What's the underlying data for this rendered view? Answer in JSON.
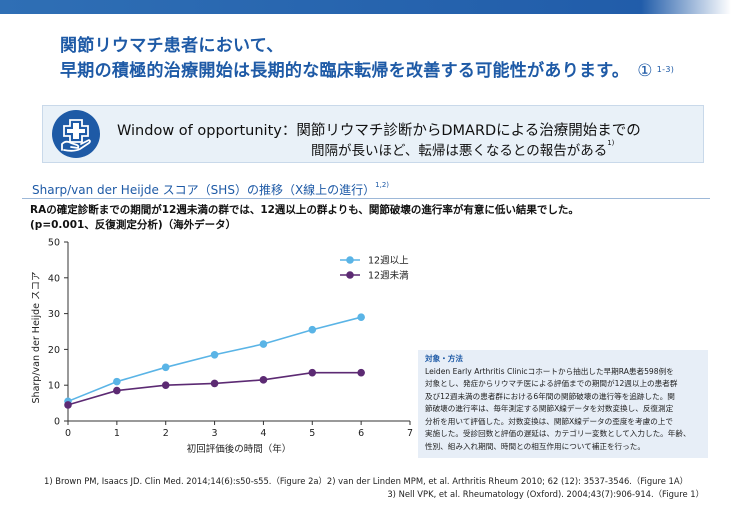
{
  "title": {
    "line1": "関節リウマチ患者において、",
    "line2": "早期の積極的治療開始は長期的な臨床転帰を改善する可能性があります。",
    "marker": "①",
    "ref": "1-3)"
  },
  "window": {
    "heading": "Window of opportunity",
    "colon": "：",
    "line1_text": "関節リウマチ診断からDMARDによる治療開始までの",
    "line2_text": "間隔が長いほど、転帰は悪くなるとの報告がある",
    "line2_ref": "1)"
  },
  "chart_section": {
    "title": "Sharp/van der Heijde スコア（SHS）の推移（X線上の進行）",
    "title_ref": "1,2)",
    "desc_line1": "RAの確定診断までの期間が12週未満の群では、12週以上の群よりも、関節破壊の進行率が有意に低い結果でした。",
    "desc_line2": "(p=0.001、反復測定分析)（海外データ）"
  },
  "chart_data": {
    "type": "line",
    "x": [
      0,
      1,
      2,
      3,
      4,
      5,
      6
    ],
    "xlim": [
      0,
      7
    ],
    "ylim": [
      0,
      50
    ],
    "xticks": [
      "0",
      "1",
      "2",
      "3",
      "4",
      "5",
      "6",
      "7"
    ],
    "yticks": [
      "0",
      "10",
      "20",
      "30",
      "40",
      "50"
    ],
    "xlabel": "初回評価後の時間（年）",
    "ylabel": "Sharp/van der Heijde スコア",
    "legend_position": "top-right",
    "grid": false,
    "series": [
      {
        "name": "12週以上",
        "color": "#5ab4e6",
        "values": [
          5.5,
          11,
          15,
          18.5,
          21.5,
          25.5,
          29
        ]
      },
      {
        "name": "12週未満",
        "color": "#5c2a73",
        "values": [
          4.5,
          8.5,
          10,
          10.5,
          11.5,
          13.5,
          13.5
        ]
      }
    ]
  },
  "note": {
    "title": "対象・方法",
    "lines": [
      "Leiden Early Arthritis Clinicコホートから抽出した早期RA患者598例を",
      "対象とし、発症からリウマチ医による評価までの期間が12週以上の患者群",
      "及び12週未満の患者群における6年間の関節破壊の進行等を追跡した。関",
      "節破壊の進行率は、毎年測定する関節X線データを対数変換し、反復測定",
      "分析を用いて評価した。対数変換は、関節X線データの歪度を考慮の上で",
      "実施した。受診回数と評価の遅延は、カテゴリー変数として入力した。年齢、",
      "性別、組み入れ期間、時間との相互作用について補正を行った。"
    ]
  },
  "references": {
    "line1": "1) Brown PM, Isaacs JD. Clin Med. 2014;14(6):s50-s55.（Figure 2a）2) van der Linden MPM, et al. Arthritis Rheum 2010; 62 (12): 3537-3546.（Figure 1A）",
    "line2": "3) Nell VPK, et al. Rheumatology (Oxford). 2004;43(7):906-914.（Figure 1）"
  }
}
